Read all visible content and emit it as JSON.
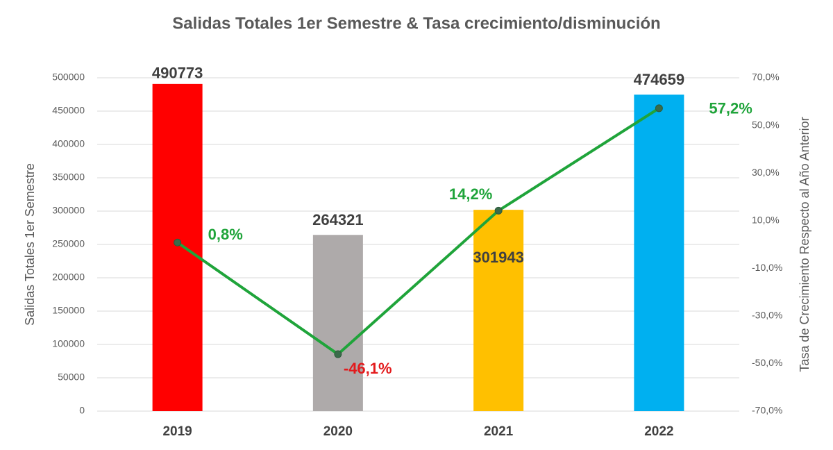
{
  "chart_data": {
    "type": "bar",
    "title": "Salidas Totales 1er Semestre & Tasa crecimiento/disminución",
    "categories": [
      "2019",
      "2020",
      "2021",
      "2022"
    ],
    "values": [
      490773,
      264321,
      301943,
      474659
    ],
    "colors": [
      "#ff0000",
      "#aeaaaa",
      "#ffc000",
      "#00b0f0"
    ],
    "y_label": "Salidas Totales 1er Semestre",
    "y2_label": "Tasa de Crecimiento Respecto al Año Anterior",
    "ylim": [
      0,
      500000
    ],
    "yticks": [
      0,
      50000,
      100000,
      150000,
      200000,
      250000,
      300000,
      350000,
      400000,
      450000,
      500000
    ],
    "y2lim": [
      -70,
      70
    ],
    "y2ticks": [
      {
        "value": -70,
        "label": "-70,0%"
      },
      {
        "value": -50,
        "label": "-50,0%"
      },
      {
        "value": -30,
        "label": "-30,0%"
      },
      {
        "value": -10,
        "label": "-10,0%"
      },
      {
        "value": 10,
        "label": "10,0%"
      },
      {
        "value": 30,
        "label": "30,0%"
      },
      {
        "value": 50,
        "label": "50,0%"
      },
      {
        "value": 70,
        "label": "70,0%"
      }
    ],
    "grid": true,
    "series": [
      {
        "type": "line",
        "axis": "y2",
        "color": "#1fa43a",
        "values": [
          0.8,
          -46.1,
          14.2,
          57.2
        ],
        "value_labels": [
          "0,8%",
          "-46,1%",
          "14,2%",
          "57,2%"
        ],
        "label_colors": [
          "#1fa43a",
          "#e31a1c",
          "#1fa43a",
          "#1fa43a"
        ]
      }
    ]
  }
}
